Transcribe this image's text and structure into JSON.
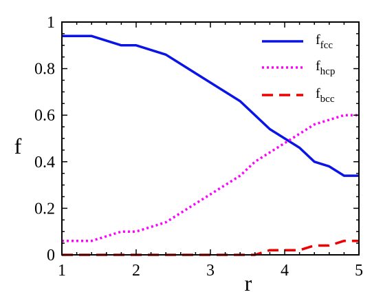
{
  "chart_data": {
    "type": "line",
    "xlabel": "r",
    "ylabel": "f",
    "xlim": [
      1,
      5
    ],
    "ylim": [
      0,
      1
    ],
    "xticks": [
      "1",
      "2",
      "3",
      "4",
      "5"
    ],
    "yticks": [
      "0",
      "0.2",
      "0.4",
      "0.6",
      "0.8",
      "1"
    ],
    "grid": false,
    "legend_position": "top-right",
    "series": [
      {
        "name": "f",
        "subscript": "fcc",
        "color": "#0a14e6",
        "dash": "solid",
        "x": [
          1.0,
          1.4,
          1.8,
          2.0,
          2.4,
          2.8,
          3.2,
          3.4,
          3.6,
          3.8,
          4.0,
          4.2,
          4.4,
          4.6,
          4.8,
          5.0
        ],
        "y": [
          0.94,
          0.94,
          0.9,
          0.9,
          0.86,
          0.78,
          0.7,
          0.66,
          0.6,
          0.54,
          0.5,
          0.46,
          0.4,
          0.38,
          0.34,
          0.34
        ]
      },
      {
        "name": "f",
        "subscript": "hcp",
        "color": "#ff00ff",
        "dash": "dotted",
        "x": [
          1.0,
          1.4,
          1.6,
          1.8,
          2.0,
          2.4,
          2.8,
          3.2,
          3.4,
          3.6,
          3.8,
          4.0,
          4.2,
          4.4,
          4.6,
          4.8,
          5.0
        ],
        "y": [
          0.06,
          0.06,
          0.08,
          0.1,
          0.1,
          0.14,
          0.22,
          0.3,
          0.34,
          0.4,
          0.44,
          0.48,
          0.52,
          0.56,
          0.58,
          0.6,
          0.6
        ]
      },
      {
        "name": "f",
        "subscript": "bcc",
        "color": "#ee0000",
        "dash": "dashed",
        "x": [
          1.0,
          1.4,
          2.0,
          2.6,
          3.0,
          3.4,
          3.6,
          3.8,
          4.0,
          4.2,
          4.4,
          4.6,
          4.8,
          5.0
        ],
        "y": [
          0.0,
          0.0,
          0.0,
          0.0,
          0.0,
          0.0,
          0.0,
          0.02,
          0.02,
          0.02,
          0.04,
          0.04,
          0.06,
          0.06
        ]
      }
    ]
  }
}
